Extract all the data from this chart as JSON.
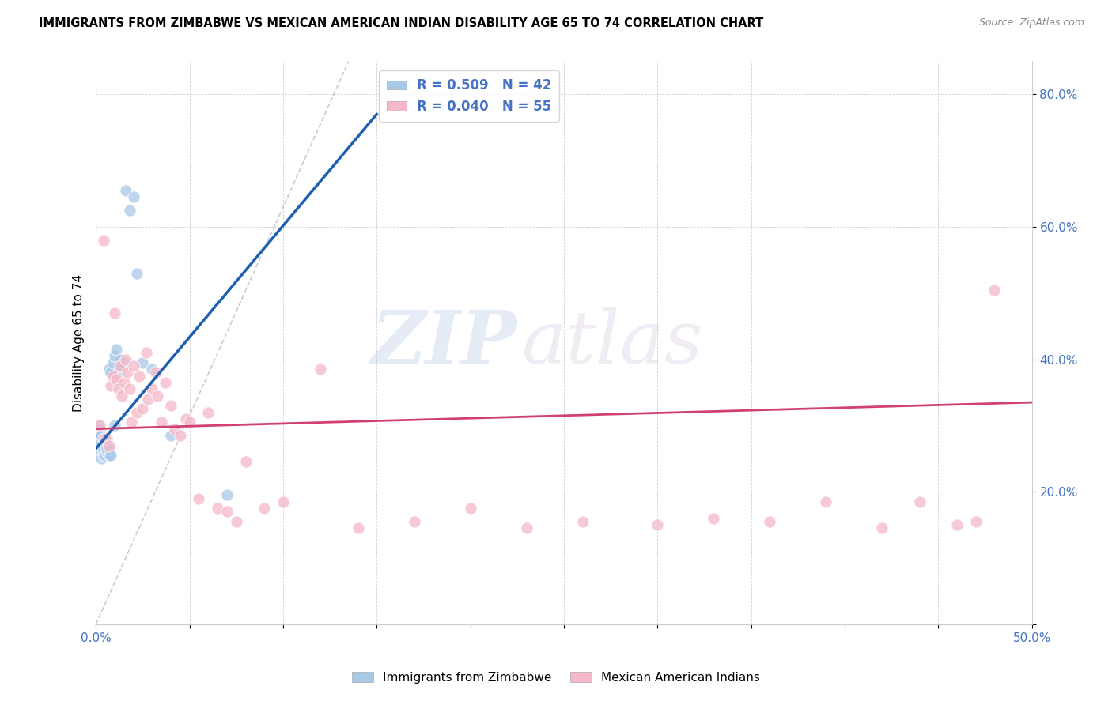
{
  "title": "IMMIGRANTS FROM ZIMBABWE VS MEXICAN AMERICAN INDIAN DISABILITY AGE 65 TO 74 CORRELATION CHART",
  "source": "Source: ZipAtlas.com",
  "ylabel": "Disability Age 65 to 74",
  "xlim": [
    0.0,
    0.5
  ],
  "ylim": [
    0.0,
    0.85
  ],
  "blue_R": 0.509,
  "blue_N": 42,
  "pink_R": 0.04,
  "pink_N": 55,
  "blue_color": "#a8c8e8",
  "pink_color": "#f4b8c8",
  "blue_line_color": "#2060b0",
  "pink_line_color": "#d04070",
  "blue_label": "Immigrants from Zimbabwe",
  "pink_label": "Mexican American Indians",
  "watermark_zip": "ZIP",
  "watermark_atlas": "atlas",
  "blue_scatter_x": [
    0.001,
    0.001,
    0.001,
    0.002,
    0.002,
    0.002,
    0.002,
    0.003,
    0.003,
    0.003,
    0.003,
    0.004,
    0.004,
    0.004,
    0.004,
    0.005,
    0.005,
    0.005,
    0.006,
    0.006,
    0.006,
    0.007,
    0.007,
    0.007,
    0.008,
    0.008,
    0.009,
    0.01,
    0.01,
    0.011,
    0.012,
    0.013,
    0.014,
    0.015,
    0.016,
    0.018,
    0.02,
    0.022,
    0.025,
    0.03,
    0.04,
    0.07
  ],
  "blue_scatter_y": [
    0.265,
    0.28,
    0.3,
    0.26,
    0.27,
    0.285,
    0.295,
    0.25,
    0.27,
    0.275,
    0.285,
    0.255,
    0.26,
    0.265,
    0.28,
    0.255,
    0.27,
    0.275,
    0.26,
    0.265,
    0.28,
    0.255,
    0.265,
    0.385,
    0.255,
    0.38,
    0.395,
    0.3,
    0.405,
    0.415,
    0.38,
    0.4,
    0.39,
    0.395,
    0.655,
    0.625,
    0.645,
    0.53,
    0.395,
    0.385,
    0.285,
    0.195
  ],
  "pink_scatter_x": [
    0.002,
    0.004,
    0.005,
    0.007,
    0.008,
    0.009,
    0.01,
    0.011,
    0.012,
    0.013,
    0.014,
    0.015,
    0.016,
    0.017,
    0.018,
    0.019,
    0.02,
    0.022,
    0.023,
    0.025,
    0.027,
    0.028,
    0.03,
    0.032,
    0.033,
    0.035,
    0.037,
    0.04,
    0.042,
    0.045,
    0.048,
    0.05,
    0.055,
    0.06,
    0.065,
    0.07,
    0.075,
    0.08,
    0.09,
    0.1,
    0.12,
    0.14,
    0.17,
    0.2,
    0.23,
    0.26,
    0.3,
    0.33,
    0.36,
    0.39,
    0.42,
    0.44,
    0.46,
    0.47,
    0.48
  ],
  "pink_scatter_y": [
    0.3,
    0.58,
    0.28,
    0.27,
    0.36,
    0.375,
    0.47,
    0.37,
    0.355,
    0.39,
    0.345,
    0.365,
    0.4,
    0.38,
    0.355,
    0.305,
    0.39,
    0.32,
    0.375,
    0.325,
    0.41,
    0.34,
    0.355,
    0.38,
    0.345,
    0.305,
    0.365,
    0.33,
    0.295,
    0.285,
    0.31,
    0.305,
    0.19,
    0.32,
    0.175,
    0.17,
    0.155,
    0.245,
    0.175,
    0.185,
    0.385,
    0.145,
    0.155,
    0.175,
    0.145,
    0.155,
    0.15,
    0.16,
    0.155,
    0.185,
    0.145,
    0.185,
    0.15,
    0.155,
    0.505
  ],
  "blue_line_x0": 0.0,
  "blue_line_x1": 0.15,
  "blue_line_y0": 0.265,
  "blue_line_y1": 0.77,
  "pink_line_x0": 0.0,
  "pink_line_x1": 0.5,
  "pink_line_y0": 0.295,
  "pink_line_y1": 0.335,
  "dash_line_x0": 0.0,
  "dash_line_x1": 0.135,
  "dash_line_y0": 0.0,
  "dash_line_y1": 0.85
}
